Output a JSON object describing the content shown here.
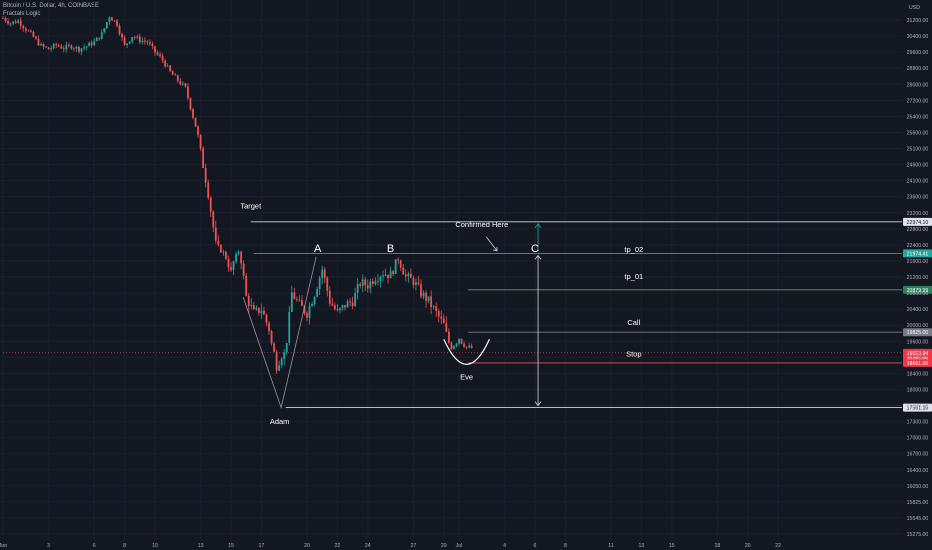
{
  "header": {
    "symbol_line": "Bitcoin / U.S. Dollar, 4h, COINBASE",
    "indicator_line": "Fractals Logic"
  },
  "chart_data": {
    "type": "candlestick",
    "currency_label": "USD",
    "ylim": [
      15275,
      31700
    ],
    "y_ticks": [
      {
        "v": 31200,
        "label": "31200.00"
      },
      {
        "v": 30400,
        "label": "30400.00"
      },
      {
        "v": 29600,
        "label": "29600.00"
      },
      {
        "v": 28800,
        "label": "28800.00"
      },
      {
        "v": 28000,
        "label": "28000.00"
      },
      {
        "v": 27200,
        "label": "27200.00"
      },
      {
        "v": 26400,
        "label": "26400.00"
      },
      {
        "v": 25600,
        "label": "25600.00"
      },
      {
        "v": 25100,
        "label": "25100.00"
      },
      {
        "v": 24600,
        "label": "24600.00"
      },
      {
        "v": 24100,
        "label": "24100.00"
      },
      {
        "v": 23600,
        "label": "23600.00"
      },
      {
        "v": 23200,
        "label": "23200.00"
      },
      {
        "v": 22800,
        "label": "22800.00"
      },
      {
        "v": 22400,
        "label": "22400.00"
      },
      {
        "v": 21600,
        "label": "21600.00"
      },
      {
        "v": 21200,
        "label": "21200.00"
      },
      {
        "v": 20800,
        "label": "20800.00"
      },
      {
        "v": 20400,
        "label": "20400.00"
      },
      {
        "v": 20000,
        "label": "20000.00"
      },
      {
        "v": 19600,
        "label": "19600.00"
      },
      {
        "v": 18800,
        "label": "18800.00"
      },
      {
        "v": 18400,
        "label": "18400.00"
      },
      {
        "v": 18000,
        "label": "18000.00"
      },
      {
        "v": 17600,
        "label": "17600.00"
      },
      {
        "v": 17300,
        "label": "17300.00"
      },
      {
        "v": 17000,
        "label": "17000.00"
      },
      {
        "v": 16700,
        "label": "16700.00"
      },
      {
        "v": 16400,
        "label": "16400.00"
      },
      {
        "v": 16050,
        "label": "16050.00"
      },
      {
        "v": 15825,
        "label": "15825.00"
      },
      {
        "v": 15545,
        "label": "15545.00"
      },
      {
        "v": 15275,
        "label": "15275.00"
      }
    ],
    "x_ticks": [
      {
        "day": 0,
        "label": "Jun"
      },
      {
        "day": 3,
        "label": "3"
      },
      {
        "day": 6,
        "label": "6"
      },
      {
        "day": 8,
        "label": "8"
      },
      {
        "day": 10,
        "label": "10"
      },
      {
        "day": 13,
        "label": "13"
      },
      {
        "day": 15,
        "label": "15"
      },
      {
        "day": 17,
        "label": "17"
      },
      {
        "day": 20,
        "label": "20"
      },
      {
        "day": 22,
        "label": "22"
      },
      {
        "day": 24,
        "label": "24"
      },
      {
        "day": 27,
        "label": "27"
      },
      {
        "day": 29,
        "label": "29"
      },
      {
        "day": 30,
        "label": "Jul"
      },
      {
        "day": 33,
        "label": "4"
      },
      {
        "day": 35,
        "label": "6"
      },
      {
        "day": 37,
        "label": "8"
      },
      {
        "day": 40,
        "label": "11"
      },
      {
        "day": 42,
        "label": "13"
      },
      {
        "day": 44,
        "label": "15"
      },
      {
        "day": 47,
        "label": "18"
      },
      {
        "day": 49,
        "label": "20"
      },
      {
        "day": 51,
        "label": "22"
      }
    ],
    "close_path": [
      {
        "day": 0,
        "close": 31300
      },
      {
        "day": 0.5,
        "close": 31050
      },
      {
        "day": 1.0,
        "close": 31150
      },
      {
        "day": 1.5,
        "close": 30750
      },
      {
        "day": 2.0,
        "close": 30350
      },
      {
        "day": 2.5,
        "close": 29900
      },
      {
        "day": 3.0,
        "close": 29750
      },
      {
        "day": 3.5,
        "close": 29950
      },
      {
        "day": 4.0,
        "close": 29800
      },
      {
        "day": 4.5,
        "close": 29900
      },
      {
        "day": 5.0,
        "close": 29750
      },
      {
        "day": 5.5,
        "close": 29900
      },
      {
        "day": 6.0,
        "close": 30100
      },
      {
        "day": 6.5,
        "close": 30500
      },
      {
        "day": 7.0,
        "close": 31400
      },
      {
        "day": 7.5,
        "close": 31000
      },
      {
        "day": 8.0,
        "close": 29900
      },
      {
        "day": 8.5,
        "close": 30400
      },
      {
        "day": 9.0,
        "close": 30200
      },
      {
        "day": 9.5,
        "close": 30100
      },
      {
        "day": 10.0,
        "close": 29600
      },
      {
        "day": 10.5,
        "close": 29200
      },
      {
        "day": 11.0,
        "close": 28600
      },
      {
        "day": 11.5,
        "close": 28200
      },
      {
        "day": 12.0,
        "close": 27800
      },
      {
        "day": 12.5,
        "close": 26400
      },
      {
        "day": 13.0,
        "close": 25000
      },
      {
        "day": 13.5,
        "close": 23700
      },
      {
        "day": 14.0,
        "close": 22400
      },
      {
        "day": 14.5,
        "close": 22000
      },
      {
        "day": 15.0,
        "close": 21300
      },
      {
        "day": 15.5,
        "close": 22100
      },
      {
        "day": 16.0,
        "close": 20700
      },
      {
        "day": 16.5,
        "close": 20300
      },
      {
        "day": 17.0,
        "close": 20400
      },
      {
        "day": 17.5,
        "close": 19900
      },
      {
        "day": 18.0,
        "close": 18600
      },
      {
        "day": 18.5,
        "close": 19000
      },
      {
        "day": 19.0,
        "close": 20800
      },
      {
        "day": 19.5,
        "close": 20500
      },
      {
        "day": 20.0,
        "close": 20300
      },
      {
        "day": 20.5,
        "close": 20800
      },
      {
        "day": 21.0,
        "close": 21400
      },
      {
        "day": 21.5,
        "close": 20600
      },
      {
        "day": 22.0,
        "close": 20300
      },
      {
        "day": 22.5,
        "close": 20500
      },
      {
        "day": 23.0,
        "close": 20600
      },
      {
        "day": 23.5,
        "close": 21050
      },
      {
        "day": 24.0,
        "close": 21000
      },
      {
        "day": 24.5,
        "close": 21200
      },
      {
        "day": 25.0,
        "close": 21300
      },
      {
        "day": 25.5,
        "close": 21250
      },
      {
        "day": 26.0,
        "close": 21700
      },
      {
        "day": 26.5,
        "close": 21200
      },
      {
        "day": 27.0,
        "close": 21100
      },
      {
        "day": 27.5,
        "close": 20800
      },
      {
        "day": 28.0,
        "close": 20600
      },
      {
        "day": 28.5,
        "close": 20300
      },
      {
        "day": 29.0,
        "close": 20000
      },
      {
        "day": 29.5,
        "close": 19300
      },
      {
        "day": 30.0,
        "close": 19700
      },
      {
        "day": 30.5,
        "close": 19300
      },
      {
        "day": 31.0,
        "close": 19250
      }
    ],
    "horizontal_levels": [
      {
        "name": "Target",
        "price": 22974.1,
        "price_label": "22974.10",
        "style": "white"
      },
      {
        "name": "tp_02",
        "price": 21974.41,
        "price_label": "21974.41",
        "style": "teal"
      },
      {
        "name": "tp_01",
        "price": 20879.99,
        "price_label": "20879.99",
        "style": "green"
      },
      {
        "name": "Call",
        "price": 19825.0,
        "price_label": "19825.00",
        "style": "gray"
      },
      {
        "name": "current",
        "price": 19023.94,
        "price_label": "19023.94",
        "countdown": "01:31:09",
        "style": "red"
      },
      {
        "name": "Stop",
        "price": 18661.0,
        "price_label": "18661.00",
        "style": "red"
      },
      {
        "name": "Adam low",
        "price": 17561.1,
        "price_label": "17561.10",
        "style": "white"
      }
    ],
    "annotations": [
      {
        "text": "Target",
        "day": 16.3,
        "price": 23300
      },
      {
        "text": "A",
        "day": 20.7,
        "price": 22050
      },
      {
        "text": "B",
        "day": 25.5,
        "price": 22050
      },
      {
        "text": "Confirmed Here",
        "day": 31.5,
        "price": 22850
      },
      {
        "text": "C",
        "day": 35.0,
        "price": 22050
      },
      {
        "text": "tp_02",
        "day": 41.5,
        "price": 22050
      },
      {
        "text": "tp_01",
        "day": 41.5,
        "price": 21150
      },
      {
        "text": "Call",
        "day": 41.5,
        "price": 20000
      },
      {
        "text": "Stop",
        "day": 41.5,
        "price": 18850
      },
      {
        "text": "Eve",
        "day": 30.5,
        "price": 18250
      },
      {
        "text": "Adam",
        "day": 18.2,
        "price": 17250
      }
    ],
    "colors": {
      "up": "#26a69a",
      "down": "#ef5350",
      "background": "#131722",
      "grid": "#1c202c",
      "text": "#b2b5be"
    }
  }
}
